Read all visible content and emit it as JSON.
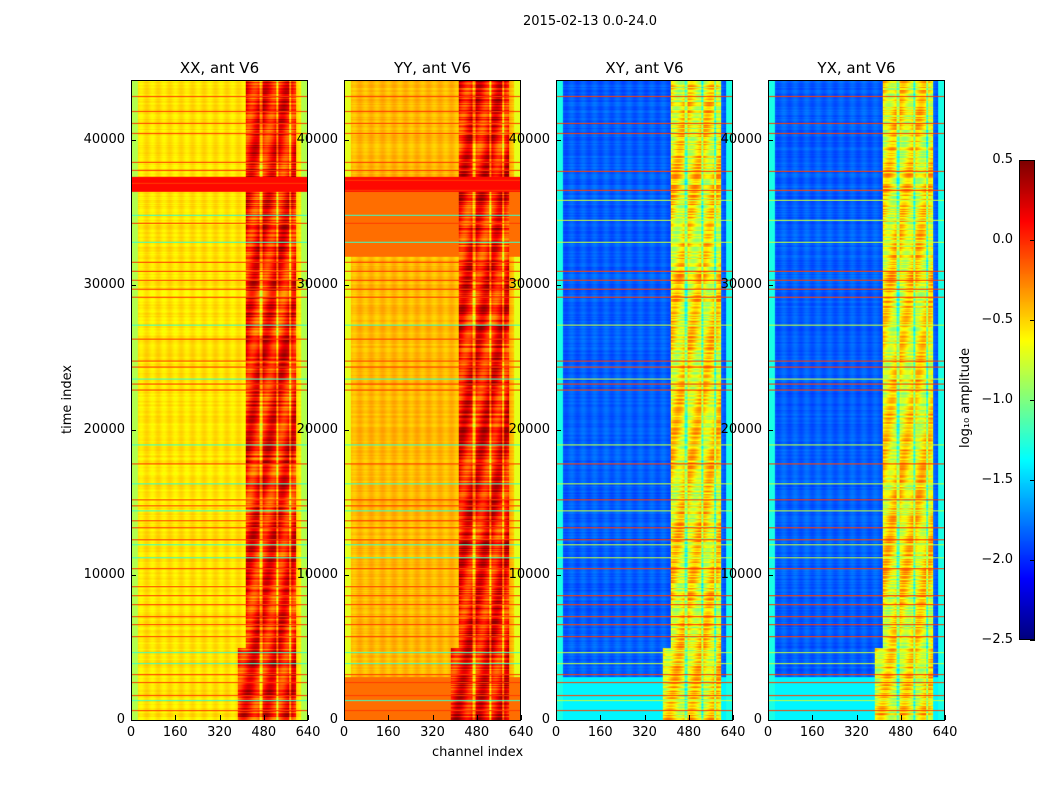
{
  "suptitle": "2015-02-13 0.0-24.0",
  "chart_data": [
    {
      "type": "heatmap",
      "title": "XX, ant V6",
      "xlabel": "",
      "ylabel": "time index",
      "xlim": [
        0,
        640
      ],
      "ylim": [
        0,
        44100
      ],
      "xticks": [
        "0",
        "160",
        "320",
        "480",
        "640"
      ],
      "yticks": [
        "0",
        "10000",
        "20000",
        "30000",
        "40000"
      ],
      "base": -0.55,
      "band_base": 0.05,
      "edge": -0.85,
      "lines_red": [
        700,
        1700,
        2600,
        3200,
        5800,
        6600,
        7200,
        8000,
        8600,
        9200,
        10500,
        12500,
        13300,
        13800,
        14800,
        15200,
        17700,
        22800,
        23200,
        24400,
        24800,
        26300,
        29200,
        29800,
        30400,
        31000,
        31600,
        34300,
        37100,
        38000,
        38500,
        40500,
        41200,
        42000,
        43100
      ],
      "lines_cyan": [
        1400,
        3900,
        4700,
        11200,
        12100,
        14500,
        16300,
        19000,
        23600,
        27300,
        33000,
        34900
      ]
    },
    {
      "type": "heatmap",
      "title": "YY, ant V6",
      "xlabel": "channel index",
      "ylabel": "",
      "xlim": [
        0,
        640
      ],
      "ylim": [
        0,
        44100
      ],
      "xticks": [
        "0",
        "160",
        "320",
        "480",
        "640"
      ],
      "yticks": [
        "0",
        "10000",
        "20000",
        "30000",
        "40000"
      ],
      "base": -0.42,
      "band_base": 0.08,
      "edge": -0.7,
      "lines_red": [
        700,
        1700,
        2600,
        3200,
        5800,
        6600,
        7200,
        8000,
        8600,
        9200,
        10500,
        12500,
        13300,
        13800,
        14800,
        15200,
        17700,
        22800,
        23200,
        24400,
        24800,
        26300,
        29200,
        29800,
        30400,
        31000,
        31600,
        34300,
        36600,
        37300,
        38000,
        38500,
        40500,
        41200,
        42000,
        43100
      ],
      "lines_cyan": [
        1400,
        3900,
        4700,
        11200,
        12100,
        14500,
        16300,
        19000,
        23600,
        27300,
        33000,
        34900
      ]
    },
    {
      "type": "heatmap",
      "title": "XY, ant V6",
      "xlabel": "",
      "ylabel": "",
      "xlim": [
        0,
        640
      ],
      "ylim": [
        0,
        44100
      ],
      "xticks": [
        "0",
        "160",
        "320",
        "480",
        "640"
      ],
      "yticks": [
        "0",
        "10000",
        "20000",
        "30000",
        "40000"
      ],
      "base": -1.85,
      "band_base": -0.6,
      "edge": -1.3,
      "lines_red": [
        700,
        1700,
        2600,
        3200,
        5800,
        6600,
        7200,
        8000,
        8600,
        10500,
        12500,
        13300,
        15200,
        17700,
        22800,
        23200,
        24400,
        24800,
        29200,
        29800,
        30400,
        31000,
        36600,
        37900,
        40500,
        41200,
        43100
      ],
      "lines_cyan": [
        1400,
        3900,
        4700,
        11200,
        12100,
        14500,
        16300,
        19000,
        23600,
        27300,
        33000,
        34500,
        35900
      ]
    },
    {
      "type": "heatmap",
      "title": "YX, ant V6",
      "xlabel": "",
      "ylabel": "",
      "xlim": [
        0,
        640
      ],
      "ylim": [
        0,
        44100
      ],
      "xticks": [
        "0",
        "160",
        "320",
        "480",
        "640"
      ],
      "yticks": [
        "0",
        "10000",
        "20000",
        "30000",
        "40000"
      ],
      "base": -1.85,
      "band_base": -0.6,
      "edge": -1.3,
      "lines_red": [
        700,
        1700,
        2600,
        3200,
        5800,
        6600,
        7200,
        8000,
        8600,
        10500,
        12500,
        13300,
        15200,
        17700,
        22800,
        23200,
        24400,
        24800,
        29200,
        29800,
        30400,
        31000,
        36600,
        37900,
        40500,
        41200,
        43100
      ],
      "lines_cyan": [
        1400,
        3900,
        4700,
        11200,
        12100,
        14500,
        16300,
        19000,
        23600,
        27300,
        33000,
        34500,
        35900
      ]
    }
  ],
  "colorbar": {
    "label": "log₁₀ amplitude",
    "ticks": [
      "0.5",
      "0.0",
      "−0.5",
      "−1.0",
      "−1.5",
      "−2.0",
      "−2.5"
    ],
    "range": [
      -2.5,
      0.5
    ],
    "colormap": "jet"
  }
}
